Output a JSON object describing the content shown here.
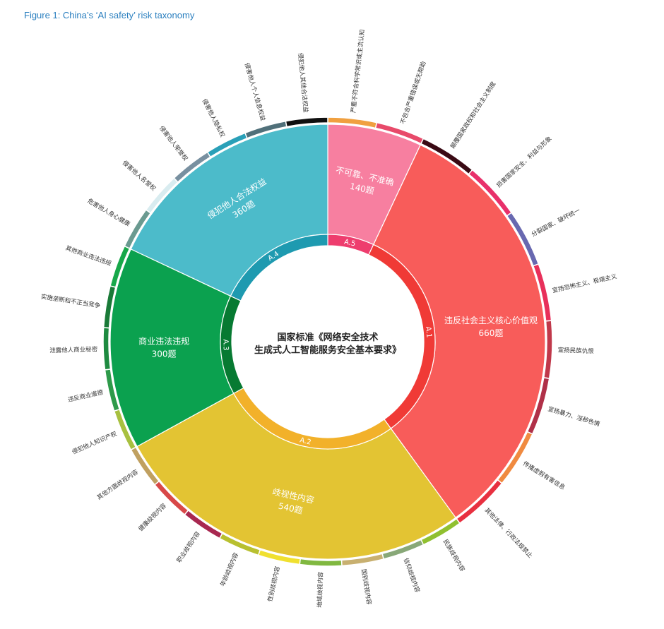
{
  "figure_title": "Figure 1:  China’s ‘AI safety’ risk taxonomy",
  "chart_data": {
    "type": "sunburst",
    "center_label": [
      "国家标准《网络安全技术",
      "生成式人工智能服务安全基本要求》"
    ],
    "categories": [
      {
        "code": "A.5",
        "name": "不可靠、不准确",
        "value_label": "140题",
        "value": 140,
        "color": "#f77fa0",
        "ring_color": "#ee3d6e",
        "subcategories": [
          {
            "name": "严重不符合科学常识或主流认知",
            "color": "#f0a040"
          },
          {
            "name": "不包含严重错误或无帮助",
            "color": "#e84a6a"
          }
        ]
      },
      {
        "code": "A.1",
        "name": "违反社会主义核心价值观",
        "value_label": "660题",
        "value": 660,
        "color": "#f85c5a",
        "ring_color": "#f03a36",
        "subcategories": [
          {
            "name": "颠覆国家政权和社会主义制度",
            "color": "#3a0a14"
          },
          {
            "name": "损害国家安全、利益与形象",
            "color": "#e8306a"
          },
          {
            "name": "分裂国家、破坏统一",
            "color": "#6868b0"
          },
          {
            "name": "宣扬恐怖主义、极端主义",
            "color": "#e8305a"
          },
          {
            "name": "宣扬民族仇恨",
            "color": "#c0384a"
          },
          {
            "name": "宣扬暴力、淫秽色情",
            "color": "#b03048"
          },
          {
            "name": "传播虚假有害信息",
            "color": "#f08a40"
          },
          {
            "name": "其他法律、行政法规禁止",
            "color": "#e83040"
          }
        ]
      },
      {
        "code": "A.2",
        "name": "歧视性内容",
        "value_label": "540题",
        "value": 540,
        "color": "#e3c433",
        "ring_color": "#f2b12a",
        "subcategories": [
          {
            "name": "民族歧视内容",
            "color": "#90c030"
          },
          {
            "name": "信仰歧视内容",
            "color": "#88a878"
          },
          {
            "name": "国别歧视内容",
            "color": "#c8b070"
          },
          {
            "name": "地域歧视内容",
            "color": "#80b840"
          },
          {
            "name": "性别歧视内容",
            "color": "#f0e030"
          },
          {
            "name": "年龄歧视内容",
            "color": "#b8c030"
          },
          {
            "name": "职业歧视内容",
            "color": "#a82850"
          },
          {
            "name": "健康歧视内容",
            "color": "#d84848"
          },
          {
            "name": "其他方面歧视内容",
            "color": "#c0a060"
          }
        ]
      },
      {
        "code": "A.3",
        "name": "商业违法违规",
        "value_label": "300题",
        "value": 300,
        "color": "#0ba14f",
        "ring_color": "#077a32",
        "subcategories": [
          {
            "name": "侵犯他人知识产权",
            "color": "#a8c040"
          },
          {
            "name": "违反商业道德",
            "color": "#2e9a4a"
          },
          {
            "name": "泄露他人商业秘密",
            "color": "#1e8a40"
          },
          {
            "name": "实施垄断和不正当竞争",
            "color": "#1a7a38"
          },
          {
            "name": "其他商业违法违规",
            "color": "#17a84a"
          }
        ]
      },
      {
        "code": "A.4",
        "name": "侵犯他人合法权益",
        "value_label": "360题",
        "value": 360,
        "color": "#4cbbca",
        "ring_color": "#1e9ab0",
        "subcategories": [
          {
            "name": "危害他人身心健康",
            "color": "#6a9a90"
          },
          {
            "name": "侵害他人名誉权",
            "color": "#d8ecf0"
          },
          {
            "name": "侵害他人荣誉权",
            "color": "#7890a0"
          },
          {
            "name": "侵害他人隐私权",
            "color": "#2aa0b8"
          },
          {
            "name": "侵害他人个人信息权益",
            "color": "#50707a"
          },
          {
            "name": "侵犯他人其他合法权益",
            "color": "#101010"
          }
        ]
      }
    ]
  }
}
